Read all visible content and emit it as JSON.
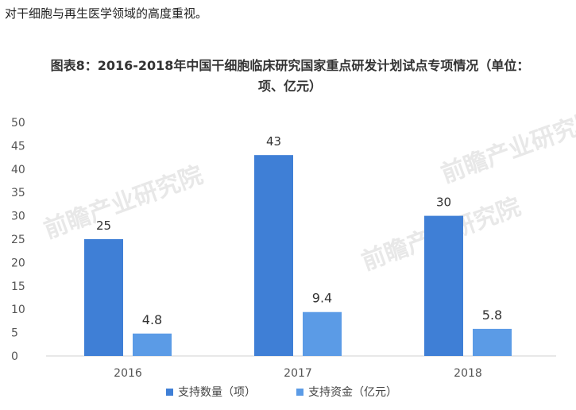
{
  "intro_text": "对干细胞与再生医学领域的高度重视。",
  "chart_data": {
    "type": "bar",
    "title": "图表8：2016-2018年中国干细胞临床研究国家重点研发计划试点专项情况（单位：项、亿元）",
    "title_line1": "图表8：2016-2018年中国干细胞临床研究国家重点研发计划试点专项情况（单位：",
    "title_line2": "项、亿元）",
    "categories": [
      "2016",
      "2017",
      "2018"
    ],
    "series": [
      {
        "name": "支持数量（项）",
        "values": [
          25,
          43,
          30
        ],
        "color": "#3f7fd6"
      },
      {
        "name": "支持资金（亿元）",
        "values": [
          4.8,
          9.4,
          5.8
        ],
        "color": "#5b9be6"
      }
    ],
    "ylim": [
      0,
      50
    ],
    "yticks": [
      0,
      5,
      10,
      15,
      20,
      25,
      30,
      35,
      40,
      45,
      50
    ],
    "grid": false,
    "legend_position": "bottom",
    "watermark": "前瞻产业研究院"
  }
}
